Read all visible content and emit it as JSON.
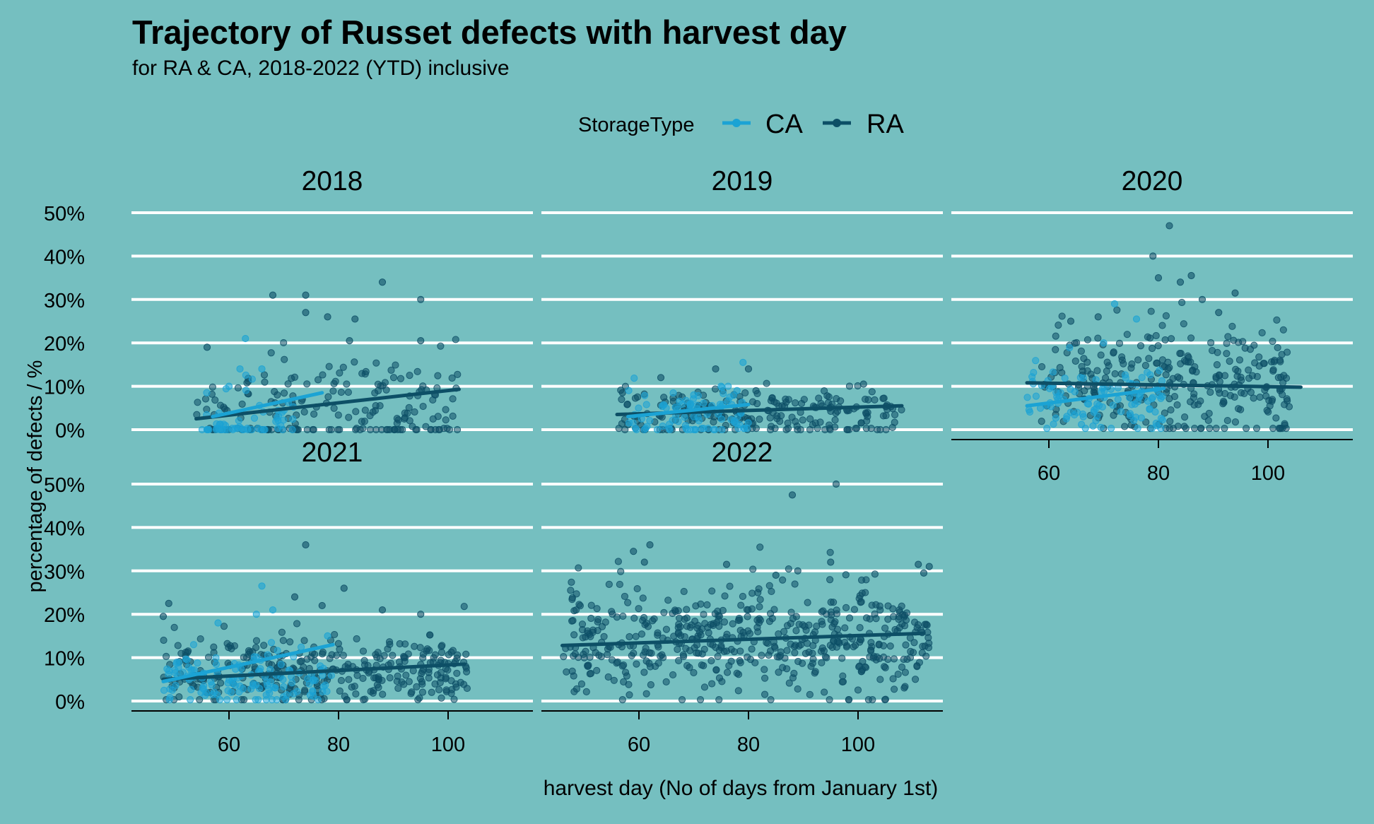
{
  "chart_data": {
    "type": "scatter",
    "title": "Trajectory of Russet defects with harvest day",
    "subtitle": "for RA & CA, 2018-2022 (YTD) inclusive",
    "xlabel": "harvest day (No of days from January 1st)",
    "ylabel": "percentage of defects / %",
    "xlim": [
      42,
      115
    ],
    "ylim": [
      -2,
      52
    ],
    "x_ticks": [
      60,
      80,
      100
    ],
    "y_ticks": [
      0,
      10,
      20,
      30,
      40,
      50
    ],
    "y_tick_labels": [
      "0%",
      "10%",
      "20%",
      "30%",
      "40%",
      "50%"
    ],
    "grid": "horizontal",
    "legend": {
      "title": "StorageType",
      "position": "top",
      "items": [
        {
          "name": "CA",
          "color": "#1ba3d4"
        },
        {
          "name": "RA",
          "color": "#0d4f66"
        }
      ]
    },
    "panels": [
      {
        "label": "2018",
        "series": [
          {
            "name": "CA",
            "trend": [
              [
                57,
                3.0
              ],
              [
                77,
                8.5
              ]
            ],
            "point_clusters": [
              {
                "x_range": [
                  55,
                  72
                ],
                "y_mean": 3,
                "y_spread": 3.5,
                "count": 60,
                "zero_share": 0.4
              }
            ],
            "highlight_points": [
              [
                63,
                21
              ],
              [
                62,
                14
              ],
              [
                66,
                14
              ],
              [
                60,
                10
              ]
            ]
          },
          {
            "name": "RA",
            "trend": [
              [
                54,
                2.5
              ],
              [
                102,
                9.3
              ]
            ],
            "point_clusters": [
              {
                "x_range": [
                  54,
                  102
                ],
                "y_mean": 7,
                "y_spread": 5.5,
                "count": 190,
                "zero_share": 0.3
              }
            ],
            "highlight_points": [
              [
                56,
                19
              ],
              [
                68,
                31
              ],
              [
                74,
                31
              ],
              [
                88,
                34
              ],
              [
                95,
                30
              ],
              [
                74,
                27
              ],
              [
                78,
                26
              ],
              [
                83,
                25.5
              ],
              [
                95,
                20.5
              ],
              [
                82,
                20.5
              ]
            ]
          }
        ]
      },
      {
        "label": "2019",
        "series": [
          {
            "name": "CA",
            "trend": [
              [
                58,
                3.0
              ],
              [
                80,
                5.8
              ]
            ],
            "point_clusters": [
              {
                "x_range": [
                  58,
                  80
                ],
                "y_mean": 4.5,
                "y_spread": 3,
                "count": 90,
                "zero_share": 0.15
              }
            ],
            "highlight_points": [
              [
                79,
                15.5
              ],
              [
                75,
                10
              ],
              [
                70,
                8
              ]
            ]
          },
          {
            "name": "RA",
            "trend": [
              [
                56,
                3.5
              ],
              [
                108,
                5.5
              ]
            ],
            "point_clusters": [
              {
                "x_range": [
                  56,
                  108
                ],
                "y_mean": 4.5,
                "y_spread": 2.8,
                "count": 220,
                "zero_share": 0.12
              }
            ],
            "highlight_points": [
              [
                74,
                14
              ],
              [
                80,
                14
              ],
              [
                64,
                12
              ],
              [
                101,
                10.5
              ],
              [
                57,
                8.5
              ]
            ]
          }
        ]
      },
      {
        "label": "2020",
        "series": [
          {
            "name": "CA",
            "trend": [
              [
                56,
                5.5
              ],
              [
                81,
                9.5
              ]
            ],
            "point_clusters": [
              {
                "x_range": [
                  56,
                  81
                ],
                "y_mean": 7,
                "y_spread": 4,
                "count": 110,
                "zero_share": 0
              }
            ],
            "highlight_points": [
              [
                72,
                29
              ],
              [
                76,
                25.5
              ],
              [
                70,
                20
              ]
            ]
          },
          {
            "name": "RA",
            "trend": [
              [
                56,
                10.8
              ],
              [
                106,
                9.8
              ]
            ],
            "point_clusters": [
              {
                "x_range": [
                  58,
                  104
                ],
                "y_mean": 11,
                "y_spread": 7,
                "count": 300,
                "zero_share": 0
              }
            ],
            "highlight_points": [
              [
                82,
                47
              ],
              [
                79,
                40
              ],
              [
                80,
                35
              ],
              [
                86,
                35.5
              ],
              [
                84,
                34
              ],
              [
                94,
                31.5
              ],
              [
                88,
                30
              ],
              [
                69,
                26
              ],
              [
                91,
                27
              ],
              [
                64,
                25
              ]
            ]
          }
        ]
      },
      {
        "label": "2021",
        "series": [
          {
            "name": "CA",
            "trend": [
              [
                48,
                4.5
              ],
              [
                79,
                13
              ]
            ],
            "point_clusters": [
              {
                "x_range": [
                  48,
                  79
                ],
                "y_mean": 5,
                "y_spread": 3.5,
                "count": 140,
                "zero_share": 0
              }
            ],
            "highlight_points": [
              [
                66,
                26.5
              ],
              [
                68,
                21
              ],
              [
                58,
                18
              ],
              [
                78,
                15
              ],
              [
                65,
                20
              ]
            ]
          },
          {
            "name": "RA",
            "trend": [
              [
                48,
                5.0
              ],
              [
                103,
                8.5
              ]
            ],
            "point_clusters": [
              {
                "x_range": [
                  48,
                  104
                ],
                "y_mean": 7,
                "y_spread": 4.5,
                "count": 330,
                "zero_share": 0
              }
            ],
            "highlight_points": [
              [
                74,
                36
              ],
              [
                81,
                26
              ],
              [
                72,
                24
              ],
              [
                49,
                22.5
              ],
              [
                77,
                22
              ],
              [
                88,
                21
              ],
              [
                48,
                19.5
              ],
              [
                95,
                20
              ]
            ]
          }
        ]
      },
      {
        "label": "2022",
        "series": [
          {
            "name": "RA",
            "trend": [
              [
                46,
                12.8
              ],
              [
                112,
                15.6
              ]
            ],
            "point_clusters": [
              {
                "x_range": [
                  46,
                  113
                ],
                "y_mean": 14,
                "y_spread": 6.5,
                "count": 520,
                "zero_share": 0
              }
            ],
            "highlight_points": [
              [
                96,
                50
              ],
              [
                88,
                47.5
              ],
              [
                62,
                36
              ],
              [
                59,
                34.5
              ],
              [
                61,
                32
              ],
              [
                76,
                31.5
              ],
              [
                95,
                32
              ],
              [
                111,
                31.5
              ],
              [
                113,
                31
              ],
              [
                112,
                29.5
              ],
              [
                85,
                29
              ],
              [
                89,
                30
              ]
            ]
          }
        ]
      }
    ]
  }
}
